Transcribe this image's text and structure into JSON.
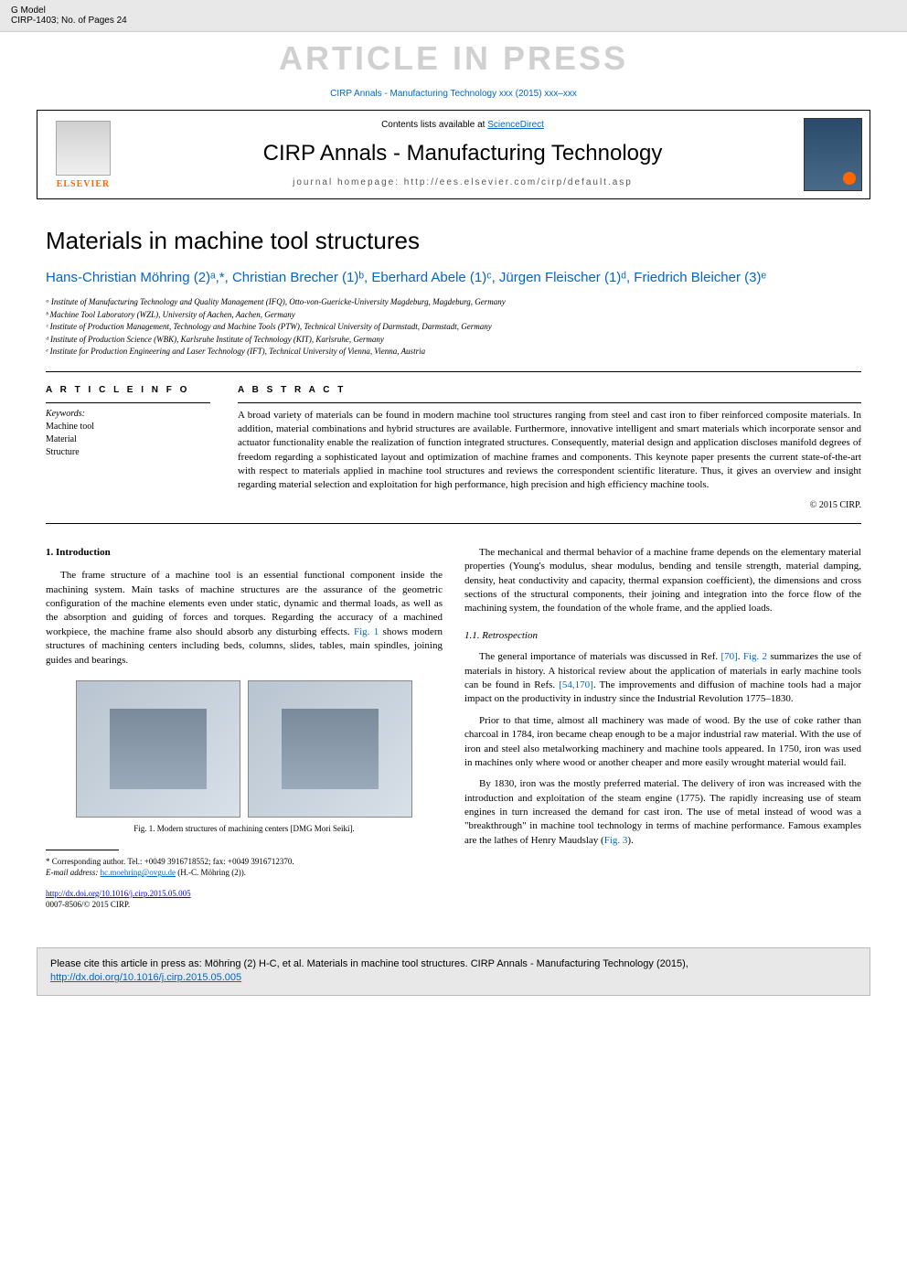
{
  "topbar": {
    "left_line1": "G Model",
    "left_line2": "CIRP-1403; No. of Pages 24",
    "banner": "ARTICLE IN PRESS",
    "citation": "CIRP Annals - Manufacturing Technology xxx (2015) xxx–xxx"
  },
  "journal_header": {
    "publisher": "ELSEVIER",
    "contents_prefix": "Contents lists available at ",
    "contents_link": "ScienceDirect",
    "journal_name": "CIRP Annals - Manufacturing Technology",
    "homepage_label": "journal homepage: http://ees.elsevier.com/cirp/default.asp"
  },
  "article": {
    "title": "Materials in machine tool structures",
    "authors_html": "Hans-Christian Möhring (2)ᵃ,*, Christian Brecher (1)ᵇ, Eberhard Abele (1)ᶜ, Jürgen Fleischer (1)ᵈ, Friedrich Bleicher (3)ᵉ",
    "affiliations": [
      "ᵃ Institute of Manufacturing Technology and Quality Management (IFQ), Otto-von-Guericke-University Magdeburg, Magdeburg, Germany",
      "ᵇ Machine Tool Laboratory (WZL), University of Aachen, Aachen, Germany",
      "ᶜ Institute of Production Management, Technology and Machine Tools (PTW), Technical University of Darmstadt, Darmstadt, Germany",
      "ᵈ Institute of Production Science (WBK), Karlsruhe Institute of Technology (KIT), Karlsruhe, Germany",
      "ᵉ Institute for Production Engineering and Laser Technology (IFT), Technical University of Vienna, Vienna, Austria"
    ]
  },
  "info": {
    "head": "A R T I C L E  I N F O",
    "keywords_label": "Keywords:",
    "keywords": [
      "Machine tool",
      "Material",
      "Structure"
    ]
  },
  "abstract": {
    "head": "A B S T R A C T",
    "text": "A broad variety of materials can be found in modern machine tool structures ranging from steel and cast iron to fiber reinforced composite materials. In addition, material combinations and hybrid structures are available. Furthermore, innovative intelligent and smart materials which incorporate sensor and actuator functionality enable the realization of function integrated structures. Consequently, material design and application discloses manifold degrees of freedom regarding a sophisticated layout and optimization of machine frames and components. This keynote paper presents the current state-of-the-art with respect to materials applied in machine tool structures and reviews the correspondent scientific literature. Thus, it gives an overview and insight regarding material selection and exploitation for high performance, high precision and high efficiency machine tools.",
    "copyright": "© 2015 CIRP."
  },
  "body": {
    "sec1_head": "1. Introduction",
    "sec1_p1": "The frame structure of a machine tool is an essential functional component inside the machining system. Main tasks of machine structures are the assurance of the geometric configuration of the machine elements even under static, dynamic and thermal loads, as well as the absorption and guiding of forces and torques. Regarding the accuracy of a machined workpiece, the machine frame also should absorb any disturbing effects. ",
    "sec1_fig1_ref": "Fig. 1",
    "sec1_p1_tail": " shows modern structures of machining centers including beds, columns, slides, tables, main spindles, joining guides and bearings.",
    "fig1_caption": "Fig. 1. Modern structures of machining centers [DMG Mori Seiki].",
    "col2_p1": "The mechanical and thermal behavior of a machine frame depends on the elementary material properties (Young's modulus, shear modulus, bending and tensile strength, material damping, density, heat conductivity and capacity, thermal expansion coefficient), the dimensions and cross sections of the structural components, their joining and integration into the force flow of the machining system, the foundation of the whole frame, and the applied loads.",
    "sec11_head": "1.1. Retrospection",
    "sec11_p1_a": "The general importance of materials was discussed in Ref. ",
    "ref70": "[70]",
    "sec11_p1_b": ". ",
    "fig2_ref": "Fig. 2",
    "sec11_p1_c": " summarizes the use of materials in history. A historical review about the application of materials in early machine tools can be found in Refs. ",
    "ref54_170": "[54,170]",
    "sec11_p1_d": ". The improvements and diffusion of machine tools had a major impact on the productivity in industry since the Industrial Revolution 1775–1830.",
    "sec11_p2": "Prior to that time, almost all machinery was made of wood. By the use of coke rather than charcoal in 1784, iron became cheap enough to be a major industrial raw material. With the use of iron and steel also metalworking machinery and machine tools appeared. In 1750, iron was used in machines only where wood or another cheaper and more easily wrought material would fail.",
    "sec11_p3_a": "By 1830, iron was the mostly preferred material. The delivery of iron was increased with the introduction and exploitation of the steam engine (1775). The rapidly increasing use of steam engines in turn increased the demand for cast iron. The use of metal instead of wood was a \"breakthrough\" in machine tool technology in terms of machine performance. Famous examples are the lathes of Henry Maudslay (",
    "fig3_ref": "Fig. 3",
    "sec11_p3_b": ")."
  },
  "footnote": {
    "corresponding": "* Corresponding author. Tel.: +0049 3916718552; fax: +0049 3916712370.",
    "email_label": "E-mail address: ",
    "email": "hc.moehring@ovgu.de",
    "email_tail": " (H.-C. Möhring (2))."
  },
  "doi": {
    "url": "http://dx.doi.org/10.1016/j.cirp.2015.05.005",
    "line2": "0007-8506/© 2015 CIRP."
  },
  "citebox": {
    "text_a": "Please cite this article in press as: Möhring (2) H-C, et al. Materials in machine tool structures. CIRP Annals - Manufacturing Technology (2015), ",
    "url": "http://dx.doi.org/10.1016/j.cirp.2015.05.005"
  },
  "colors": {
    "link": "#0066cc",
    "banner_gray": "#d0d0d0",
    "elsevier_orange": "#ff6600",
    "topbar_bg": "#e8e8e8"
  }
}
